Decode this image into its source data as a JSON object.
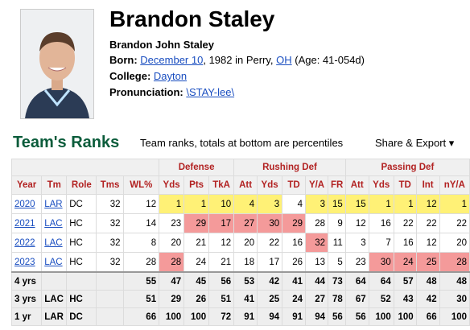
{
  "header": {
    "name": "Brandon Staley",
    "full_name": "Brandon John Staley",
    "born_label": "Born:",
    "born_date": "December 10",
    "born_year": ", 1982 in Perry, ",
    "born_state": "OH",
    "born_age": " (Age: 41-054d)",
    "college_label": "College:",
    "college": "Dayton",
    "pron_label": "Pronunciation:",
    "pron": "\\STAY-lee\\"
  },
  "section": {
    "title": "Team's Ranks",
    "subtitle": "Team ranks, totals at bottom are percentiles",
    "share": "Share & Export ▾"
  },
  "table": {
    "groups": [
      "Defense",
      "Rushing Def",
      "Passing Def"
    ],
    "columns": [
      "Year",
      "Tm",
      "Role",
      "Tms",
      "WL%",
      "Yds",
      "Pts",
      "TkA",
      "Att",
      "Yds",
      "TD",
      "Y/A",
      "FR",
      "Att",
      "Yds",
      "TD",
      "Int",
      "nY/A"
    ],
    "rows": [
      [
        "2020",
        "LAR",
        "DC",
        "32",
        "12",
        "1",
        "1",
        "10",
        "4",
        "3",
        "4",
        "3",
        "15",
        "15",
        "1",
        "1",
        "12",
        "1"
      ],
      [
        "2021",
        "LAC",
        "HC",
        "32",
        "14",
        "23",
        "29",
        "17",
        "27",
        "30",
        "29",
        "28",
        "9",
        "12",
        "16",
        "22",
        "22",
        "22"
      ],
      [
        "2022",
        "LAC",
        "HC",
        "32",
        "8",
        "20",
        "21",
        "12",
        "20",
        "22",
        "16",
        "32",
        "11",
        "3",
        "7",
        "16",
        "12",
        "20"
      ],
      [
        "2023",
        "LAC",
        "HC",
        "32",
        "28",
        "28",
        "24",
        "21",
        "18",
        "17",
        "26",
        "13",
        "5",
        "23",
        "30",
        "24",
        "25",
        "28"
      ]
    ],
    "summary": [
      [
        "4 yrs",
        "",
        "",
        "",
        "55",
        "47",
        "45",
        "56",
        "53",
        "42",
        "41",
        "44",
        "73",
        "64",
        "64",
        "57",
        "48",
        "48"
      ],
      [
        "3 yrs",
        "LAC",
        "HC",
        "",
        "51",
        "29",
        "26",
        "51",
        "41",
        "25",
        "24",
        "27",
        "78",
        "67",
        "52",
        "43",
        "42",
        "30"
      ],
      [
        "1 yr",
        "LAR",
        "DC",
        "",
        "66",
        "100",
        "100",
        "72",
        "91",
        "94",
        "91",
        "94",
        "56",
        "56",
        "100",
        "100",
        "66",
        "100"
      ]
    ]
  },
  "colors": {
    "rank_high": "#fff176",
    "rank_low": "#f49a9a",
    "section_green": "#0b5c3b",
    "header_red": "#b22222",
    "link": "#1a4ec0"
  }
}
